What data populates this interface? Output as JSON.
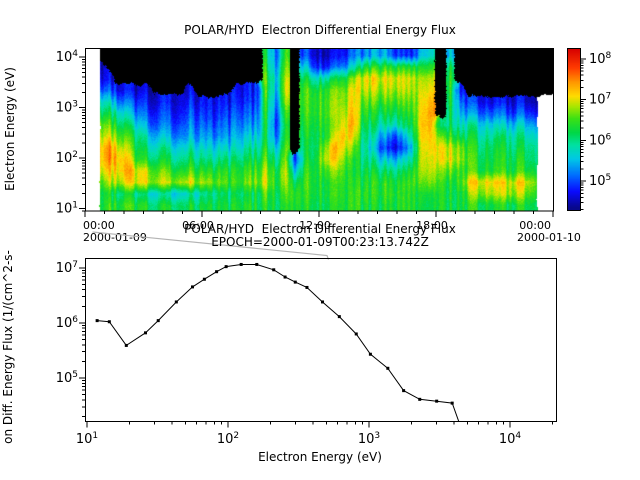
{
  "colors": {
    "background": "#ffffff",
    "axis": "#000000",
    "no_data": "#000000",
    "line": "#000000",
    "connector": "#b4b4b4",
    "colormap_stops": [
      [
        4.35,
        "#08088c"
      ],
      [
        4.75,
        "#0a0aff"
      ],
      [
        5.15,
        "#006eff"
      ],
      [
        5.55,
        "#00c8e6"
      ],
      [
        5.9,
        "#00e1a0"
      ],
      [
        6.2,
        "#00d746"
      ],
      [
        6.55,
        "#3ce114"
      ],
      [
        6.85,
        "#aae600"
      ],
      [
        7.1,
        "#ffdc00"
      ],
      [
        7.45,
        "#ff9600"
      ],
      [
        7.8,
        "#ff3c00"
      ],
      [
        8.27,
        "#d70000"
      ]
    ]
  },
  "chart_data": [
    {
      "type": "heatmap",
      "title": "POLAR/HYD  Electron Differential Energy Flux",
      "xlabel": "",
      "ylabel": "Electron Energy (eV)",
      "x_hours_range": [
        0,
        24
      ],
      "x_tick_hours": [
        0,
        6,
        12,
        18,
        24
      ],
      "x_tick_labels": [
        "00:00",
        "06:00",
        "12:00",
        "18:00",
        "00:00"
      ],
      "x_minor_tick_step_hours": 1,
      "x_dates": [
        "2000-01-09",
        "2000-01-10"
      ],
      "y_log10_range": [
        0.95,
        4.18
      ],
      "y_tick_exponents": [
        1,
        2,
        3,
        4
      ],
      "colorbar": {
        "log10_range": [
          4.29,
          8.27
        ],
        "tick_exponents": [
          5,
          6,
          7,
          8
        ]
      },
      "data_start_hours": 0.72,
      "data_end_hours": 23.2,
      "grid_log10_flux": {
        "note": "columns are 0.5h time bins from 00:00; each column lists log10 flux from high energy (top) to low energy (bottom); 0 = no data (black)",
        "col_hours_step": 0.5,
        "row_log10_energy": [
          4.05,
          3.82,
          3.59,
          3.36,
          3.13,
          2.9,
          2.67,
          2.44,
          2.21,
          1.98,
          1.75,
          1.52,
          1.29,
          1.06
        ],
        "values": [
          [
            0,
            4.7,
            5.0,
            5.4,
            6.0,
            6.3,
            6.6,
            6.9,
            7.1,
            7.2,
            7.0,
            6.7,
            6.4,
            6.4
          ],
          [
            0,
            4.6,
            4.8,
            5.2,
            5.9,
            6.3,
            6.8,
            7.0,
            7.3,
            7.3,
            7.1,
            6.7,
            6.4,
            6.4
          ],
          [
            0,
            0,
            4.6,
            5.0,
            5.6,
            6.1,
            6.5,
            6.9,
            7.4,
            7.4,
            7.1,
            6.8,
            6.2,
            6.4
          ],
          [
            0,
            0,
            0,
            4.7,
            5.2,
            5.8,
            6.2,
            6.6,
            7.0,
            7.3,
            7.2,
            6.9,
            6.1,
            6.4
          ],
          [
            0,
            0,
            0,
            4.6,
            5.0,
            5.4,
            5.9,
            6.3,
            6.6,
            6.9,
            7.2,
            7.0,
            6.1,
            6.4
          ],
          [
            0,
            0,
            0,
            4.6,
            4.9,
            5.2,
            5.6,
            6.0,
            6.2,
            6.4,
            7.0,
            7.1,
            6.0,
            6.4
          ],
          [
            0,
            0,
            0,
            4.6,
            4.8,
            5.0,
            5.3,
            5.7,
            6.0,
            6.3,
            6.9,
            7.0,
            5.9,
            6.3
          ],
          [
            0,
            0,
            0,
            0,
            4.7,
            4.9,
            5.1,
            5.5,
            5.9,
            6.2,
            6.6,
            6.9,
            5.8,
            6.2
          ],
          [
            0,
            0,
            0,
            0,
            4.7,
            4.9,
            5.1,
            5.4,
            5.8,
            6.1,
            6.5,
            6.8,
            5.7,
            6.2
          ],
          [
            0,
            0,
            0,
            0,
            4.7,
            4.8,
            5.0,
            5.3,
            5.7,
            6.0,
            6.4,
            6.9,
            5.7,
            6.2
          ],
          [
            0,
            0,
            0,
            4.6,
            4.8,
            5.0,
            5.2,
            5.4,
            5.8,
            6.1,
            6.5,
            7.0,
            5.8,
            6.2
          ],
          [
            0,
            0,
            0,
            0,
            4.7,
            4.9,
            5.1,
            5.3,
            5.7,
            6.0,
            6.4,
            6.8,
            5.8,
            6.2
          ],
          [
            0,
            0,
            0,
            0,
            4.7,
            4.8,
            5.0,
            5.3,
            5.6,
            5.9,
            6.3,
            6.7,
            5.9,
            6.2
          ],
          [
            0,
            0,
            0,
            0,
            4.7,
            4.8,
            5.0,
            5.2,
            5.6,
            5.9,
            6.3,
            6.6,
            6.0,
            6.2
          ],
          [
            0,
            0,
            0,
            0,
            4.7,
            4.9,
            5.1,
            5.3,
            5.6,
            6.0,
            6.3,
            6.5,
            6.0,
            6.2
          ],
          [
            0,
            0,
            0,
            4.7,
            4.8,
            5.0,
            5.2,
            5.4,
            5.7,
            6.0,
            6.3,
            6.4,
            6.1,
            6.3
          ],
          [
            0,
            0,
            0,
            4.7,
            4.8,
            5.0,
            5.2,
            5.5,
            5.8,
            6.1,
            6.4,
            6.6,
            6.1,
            6.3
          ],
          [
            0,
            0,
            0,
            4.8,
            4.9,
            5.1,
            5.3,
            5.6,
            5.9,
            6.2,
            6.5,
            6.7,
            6.2,
            6.3
          ],
          [
            6.2,
            6.4,
            6.6,
            6.6,
            6.5,
            6.4,
            6.3,
            6.2,
            6.4,
            6.6,
            6.9,
            7.0,
            6.6,
            6.4
          ],
          [
            5.2,
            5.4,
            5.6,
            5.5,
            5.3,
            5.1,
            5.0,
            5.2,
            5.6,
            6.0,
            6.3,
            6.4,
            6.3,
            6.3
          ],
          [
            6.5,
            6.7,
            6.9,
            7.0,
            6.8,
            6.5,
            6.3,
            6.4,
            6.6,
            6.8,
            7.0,
            6.9,
            6.6,
            6.4
          ],
          [
            0,
            0,
            0,
            0,
            0,
            0,
            0,
            0,
            0,
            4.8,
            5.4,
            6.0,
            6.4,
            6.3
          ],
          [
            5.0,
            5.6,
            6.2,
            6.5,
            6.5,
            6.4,
            6.3,
            6.2,
            6.1,
            6.2,
            6.4,
            6.5,
            6.4,
            6.3
          ],
          [
            4.7,
            5.0,
            5.9,
            6.4,
            6.5,
            6.5,
            6.4,
            6.3,
            6.2,
            6.3,
            6.4,
            6.4,
            6.4,
            6.3
          ],
          [
            4.6,
            4.9,
            6.0,
            6.5,
            6.6,
            6.6,
            6.5,
            6.4,
            6.8,
            7.0,
            6.6,
            6.4,
            6.4,
            6.3
          ],
          [
            4.6,
            5.0,
            6.1,
            6.6,
            6.7,
            6.7,
            6.6,
            6.8,
            7.2,
            7.1,
            6.7,
            6.4,
            6.4,
            6.3
          ],
          [
            4.7,
            5.2,
            6.2,
            6.6,
            6.7,
            6.8,
            7.0,
            7.2,
            7.0,
            6.7,
            6.5,
            6.4,
            6.3,
            6.3
          ],
          [
            5.0,
            5.6,
            6.6,
            6.9,
            7.0,
            7.1,
            7.2,
            6.9,
            6.5,
            6.2,
            6.1,
            6.2,
            6.3,
            6.3
          ],
          [
            5.2,
            6.2,
            7.0,
            6.9,
            6.6,
            6.4,
            6.2,
            6.0,
            5.9,
            6.0,
            6.2,
            6.3,
            6.4,
            6.3
          ],
          [
            5.4,
            6.4,
            7.1,
            6.9,
            6.6,
            6.3,
            6.1,
            5.8,
            5.6,
            5.9,
            6.2,
            6.4,
            6.4,
            6.3
          ],
          [
            5.5,
            6.4,
            7.0,
            6.8,
            6.5,
            6.2,
            5.9,
            5.4,
            5.0,
            5.6,
            6.1,
            6.4,
            6.4,
            6.3
          ],
          [
            5.0,
            6.3,
            7.0,
            6.8,
            6.5,
            6.2,
            5.8,
            5.0,
            4.7,
            5.4,
            6.0,
            6.3,
            6.4,
            6.3
          ],
          [
            4.8,
            6.3,
            6.9,
            6.8,
            6.5,
            6.2,
            5.9,
            5.2,
            4.8,
            5.5,
            6.0,
            6.3,
            6.3,
            6.3
          ],
          [
            4.7,
            6.2,
            6.8,
            6.7,
            6.5,
            6.3,
            6.1,
            5.8,
            5.4,
            5.8,
            6.2,
            6.4,
            6.3,
            6.3
          ],
          [
            5.6,
            6.4,
            6.9,
            7.0,
            7.1,
            7.2,
            7.3,
            7.2,
            7.1,
            7.0,
            6.9,
            6.7,
            6.4,
            6.3
          ],
          [
            5.8,
            6.5,
            7.0,
            7.2,
            7.4,
            7.5,
            7.4,
            7.3,
            7.2,
            7.1,
            7.0,
            6.8,
            6.4,
            6.3
          ],
          [
            0,
            0,
            0,
            0,
            0,
            0,
            5.8,
            6.5,
            7.0,
            7.0,
            6.6,
            6.4,
            6.3,
            6.3
          ],
          [
            5.6,
            6.2,
            6.4,
            6.4,
            6.3,
            6.2,
            6.2,
            6.5,
            7.0,
            7.1,
            6.7,
            6.4,
            6.3,
            6.3
          ],
          [
            0,
            0,
            0,
            4.8,
            5.2,
            5.5,
            5.8,
            6.2,
            6.7,
            6.8,
            6.5,
            6.5,
            6.3,
            6.3
          ],
          [
            0,
            0,
            0,
            0,
            4.8,
            5.2,
            5.8,
            6.1,
            6.3,
            6.4,
            6.4,
            7.0,
            6.6,
            6.3
          ],
          [
            0,
            0,
            0,
            0,
            4.8,
            5.2,
            5.7,
            6.0,
            6.2,
            6.3,
            6.4,
            7.1,
            6.8,
            6.3
          ],
          [
            0,
            0,
            0,
            0,
            4.7,
            5.1,
            5.7,
            6.0,
            6.2,
            6.3,
            6.4,
            7.2,
            6.9,
            6.3
          ],
          [
            0,
            0,
            0,
            0,
            4.7,
            5.1,
            5.6,
            6.0,
            6.2,
            6.3,
            6.4,
            7.1,
            6.8,
            6.3
          ],
          [
            0,
            0,
            0,
            0,
            4.7,
            5.0,
            5.6,
            6.0,
            6.2,
            6.3,
            6.4,
            7.0,
            6.9,
            6.3
          ],
          [
            0,
            0,
            0,
            0,
            4.7,
            5.0,
            5.6,
            5.9,
            6.1,
            6.3,
            6.4,
            7.1,
            6.8,
            6.3
          ],
          [
            0,
            0,
            0,
            0,
            4.6,
            5.0,
            5.5,
            5.9,
            6.1,
            6.2,
            6.4,
            7.0,
            6.7,
            6.3
          ],
          [
            0,
            0,
            0,
            0,
            4.6,
            4.9,
            5.5,
            5.9,
            6.1,
            6.2,
            6.4,
            6.8,
            6.6,
            6.3
          ],
          [
            0,
            0,
            0,
            0,
            4.6,
            4.9,
            5.4,
            5.8,
            6.0,
            6.2,
            6.3,
            6.5,
            6.4,
            6.3
          ]
        ]
      }
    },
    {
      "type": "line",
      "title": "POLAR/HYD  Electron Differential Energy Flux",
      "subtitle": "EPOCH=2000-01-09T00:23:13.742Z",
      "epoch_hours": 0.3872,
      "xlabel": "Electron Energy (eV)",
      "ylabel": "on Diff. Energy Flux (1/(cm^2-s-",
      "xlim_log10": [
        0.986,
        4.326
      ],
      "ylim_log10": [
        4.21,
        7.16
      ],
      "x_tick_exponents": [
        1,
        2,
        3,
        4
      ],
      "y_tick_exponents": [
        5,
        6,
        7
      ],
      "points_energy_eV_flux": [
        [
          11.8,
          1100000.0
        ],
        [
          14.4,
          1050000.0
        ],
        [
          19,
          390000.0
        ],
        [
          26,
          660000.0
        ],
        [
          32,
          1100000.0
        ],
        [
          43,
          2400000.0
        ],
        [
          56,
          4500000.0
        ],
        [
          68,
          6200000.0
        ],
        [
          83,
          8500000.0
        ],
        [
          97,
          10500000.0
        ],
        [
          124,
          11500000.0
        ],
        [
          160,
          11500000.0
        ],
        [
          211,
          9200000.0
        ],
        [
          254,
          6800000.0
        ],
        [
          300,
          5500000.0
        ],
        [
          363,
          4400000.0
        ],
        [
          468,
          2400000.0
        ],
        [
          616,
          1300000.0
        ],
        [
          812,
          630000.0
        ],
        [
          1023,
          270000.0
        ],
        [
          1360,
          150000.0
        ],
        [
          1760,
          59000.0
        ],
        [
          2290,
          41000.0
        ],
        [
          3020,
          38000.0
        ],
        [
          3890,
          35000.0
        ],
        [
          4700,
          9000.0
        ]
      ]
    }
  ]
}
